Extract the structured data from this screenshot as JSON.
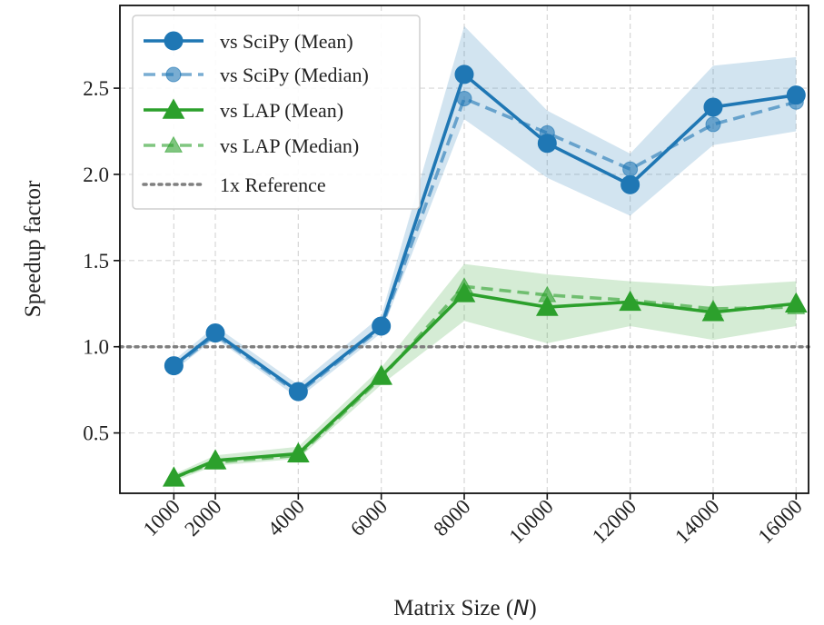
{
  "chart_data": {
    "type": "line",
    "xlabel": "Matrix Size (",
    "xlabel_var": "N",
    "xlabel_close": ")",
    "ylabel": "Speedup factor",
    "x": [
      1000,
      2000,
      4000,
      6000,
      8000,
      10000,
      12000,
      14000,
      16000
    ],
    "x_ticks": [
      "1000",
      "2000",
      "4000",
      "6000",
      "8000",
      "10000",
      "12000",
      "14000",
      "16000"
    ],
    "y_ticks": [
      0.5,
      1.0,
      1.5,
      2.0,
      2.5
    ],
    "y_tick_labels": [
      "0.5",
      "1.0",
      "1.5",
      "2.0",
      "2.5"
    ],
    "xlim": [
      -300,
      16300
    ],
    "ylim": [
      0.15,
      2.98
    ],
    "grid": true,
    "legend_position": "top-left",
    "reference_line": {
      "name": "1x Reference",
      "y": 1.0,
      "color": "#7f7f7f"
    },
    "series": [
      {
        "name": "vs SciPy (Mean)",
        "color": "#1f77b4",
        "marker": "circle",
        "dash": "solid",
        "values": [
          0.89,
          1.08,
          0.74,
          1.12,
          2.58,
          2.18,
          1.94,
          2.39,
          2.46
        ],
        "band_lower": [
          0.86,
          1.05,
          0.7,
          1.08,
          2.32,
          1.98,
          1.76,
          2.17,
          2.25
        ],
        "band_upper": [
          0.92,
          1.12,
          0.78,
          1.18,
          2.86,
          2.37,
          2.12,
          2.63,
          2.68
        ]
      },
      {
        "name": "vs SciPy (Median)",
        "color": "#1f77b4",
        "marker": "circle",
        "dash": "dashed",
        "values": [
          0.88,
          1.07,
          0.73,
          1.11,
          2.44,
          2.24,
          2.03,
          2.29,
          2.42
        ]
      },
      {
        "name": "vs LAP (Mean)",
        "color": "#2ca02c",
        "marker": "triangle",
        "dash": "solid",
        "values": [
          0.24,
          0.34,
          0.38,
          0.83,
          1.31,
          1.23,
          1.26,
          1.2,
          1.25
        ],
        "band_lower": [
          0.22,
          0.31,
          0.35,
          0.78,
          1.15,
          1.02,
          1.12,
          1.04,
          1.12
        ],
        "band_upper": [
          0.26,
          0.37,
          0.42,
          0.88,
          1.48,
          1.42,
          1.38,
          1.35,
          1.38
        ]
      },
      {
        "name": "vs LAP (Median)",
        "color": "#2ca02c",
        "marker": "triangle",
        "dash": "dashed",
        "values": [
          0.24,
          0.33,
          0.37,
          0.82,
          1.35,
          1.3,
          1.27,
          1.22,
          1.23
        ]
      }
    ]
  }
}
